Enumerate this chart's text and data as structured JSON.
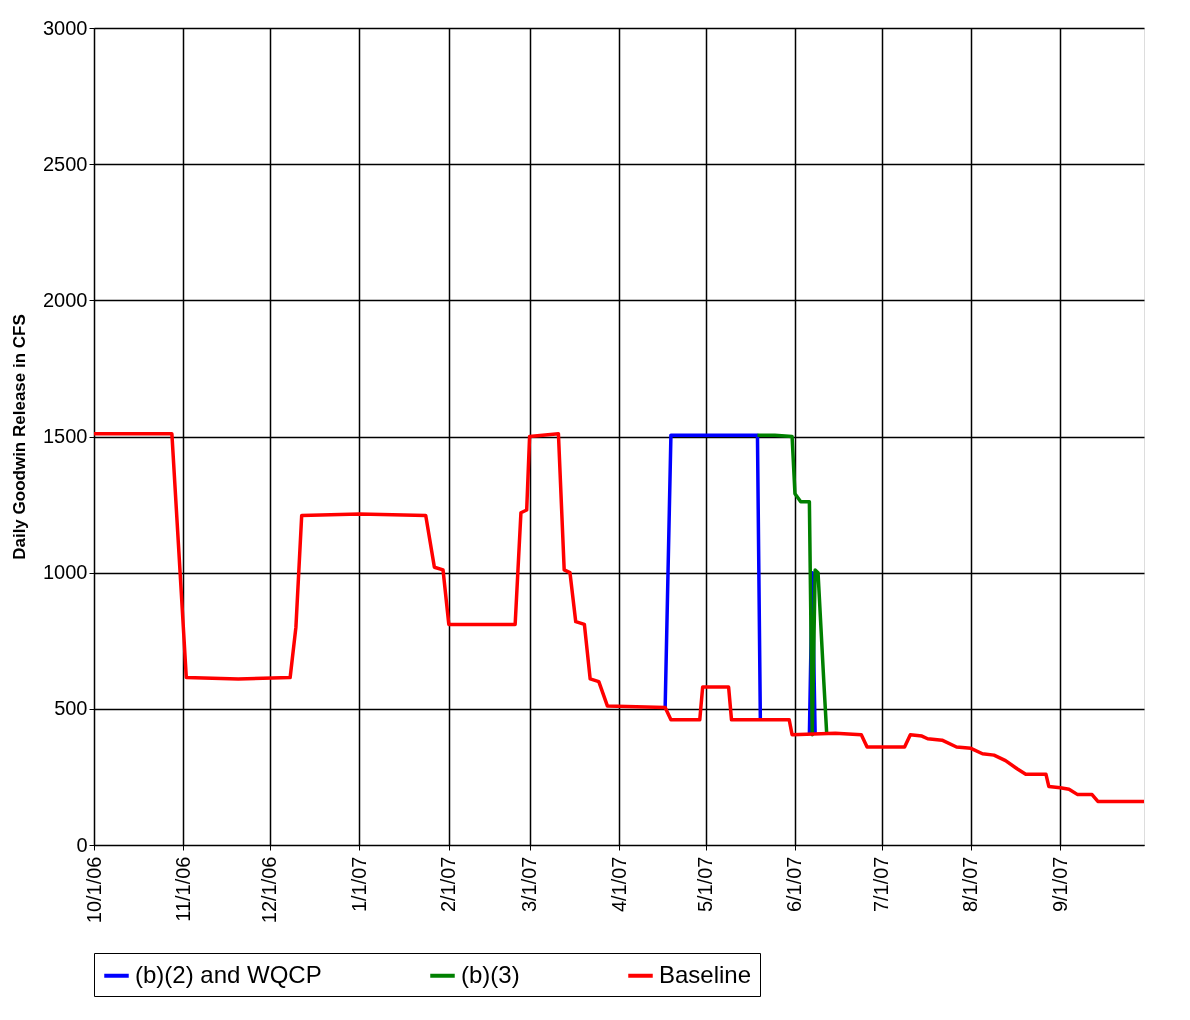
{
  "chart_data": {
    "type": "line",
    "ylabel": "Daily Goodwin Release in CFS",
    "xlim": [
      "2006-10-01",
      "2007-09-30"
    ],
    "xticks": [
      {
        "value": "2006-10-01",
        "label": "10/1/06"
      },
      {
        "value": "2006-11-01",
        "label": "11/1/06"
      },
      {
        "value": "2006-12-01",
        "label": "12/1/06"
      },
      {
        "value": "2007-01-01",
        "label": "1/1/07"
      },
      {
        "value": "2007-02-01",
        "label": "2/1/07"
      },
      {
        "value": "2007-03-01",
        "label": "3/1/07"
      },
      {
        "value": "2007-04-01",
        "label": "4/1/07"
      },
      {
        "value": "2007-05-01",
        "label": "5/1/07"
      },
      {
        "value": "2007-06-01",
        "label": "6/1/07"
      },
      {
        "value": "2007-07-01",
        "label": "7/1/07"
      },
      {
        "value": "2007-08-01",
        "label": "8/1/07"
      },
      {
        "value": "2007-09-01",
        "label": "9/1/07"
      }
    ],
    "ylim": [
      0,
      3000
    ],
    "yticks": [
      0,
      500,
      1000,
      1500,
      2000,
      2500,
      3000
    ],
    "grid": true,
    "legend": "bottom",
    "marker": "none",
    "line_style": "solid",
    "series": [
      {
        "name": "(b)(2) and WQCP",
        "color": "#0000ff",
        "x": [
          "2007-04-17",
          "2007-04-19",
          "2007-05-01",
          "2007-05-10",
          "2007-05-19",
          "2007-05-20",
          "2007-05-25",
          "2007-06-06",
          "2007-06-07",
          "2007-06-08"
        ],
        "values": [
          505,
          1505,
          1505,
          1505,
          1505,
          460,
          null,
          405,
          1000,
          405
        ]
      },
      {
        "name": "(b)(3)",
        "color": "#008000",
        "x": [
          "2007-05-19",
          "2007-05-25",
          "2007-05-31",
          "2007-06-01",
          "2007-06-03",
          "2007-06-06",
          "2007-06-07",
          "2007-06-08",
          "2007-06-09",
          "2007-06-11",
          "2007-06-12"
        ],
        "values": [
          1505,
          1505,
          1500,
          1290,
          1260,
          1260,
          405,
          1010,
          1000,
          600,
          410
        ]
      },
      {
        "name": "Baseline",
        "color": "#ff0000",
        "x": [
          "2006-10-01",
          "2006-10-10",
          "2006-10-28",
          "2006-11-02",
          "2006-11-20",
          "2006-12-08",
          "2006-12-10",
          "2006-12-12",
          "2007-01-01",
          "2007-01-24",
          "2007-01-27",
          "2007-01-30",
          "2007-02-01",
          "2007-02-24",
          "2007-02-26",
          "2007-02-28",
          "2007-03-01",
          "2007-03-11",
          "2007-03-13",
          "2007-03-15",
          "2007-03-17",
          "2007-03-20",
          "2007-03-22",
          "2007-03-25",
          "2007-03-28",
          "2007-04-17",
          "2007-04-19",
          "2007-04-29",
          "2007-04-30",
          "2007-05-09",
          "2007-05-10",
          "2007-05-30",
          "2007-05-31",
          "2007-06-15",
          "2007-06-24",
          "2007-06-26",
          "2007-07-09",
          "2007-07-11",
          "2007-07-15",
          "2007-07-17",
          "2007-07-22",
          "2007-07-27",
          "2007-08-01",
          "2007-08-05",
          "2007-08-09",
          "2007-08-13",
          "2007-08-17",
          "2007-08-20",
          "2007-08-27",
          "2007-08-28",
          "2007-09-01",
          "2007-09-04",
          "2007-09-07",
          "2007-09-12",
          "2007-09-14",
          "2007-09-30"
        ],
        "values": [
          1510,
          1510,
          1510,
          615,
          610,
          615,
          800,
          1210,
          1215,
          1210,
          1020,
          1010,
          810,
          810,
          1220,
          1230,
          1500,
          1510,
          1010,
          1000,
          820,
          810,
          610,
          600,
          510,
          505,
          460,
          460,
          580,
          580,
          460,
          460,
          405,
          410,
          405,
          360,
          360,
          405,
          400,
          390,
          385,
          360,
          355,
          335,
          330,
          310,
          280,
          260,
          260,
          215,
          210,
          205,
          185,
          185,
          160,
          160
        ]
      }
    ]
  }
}
